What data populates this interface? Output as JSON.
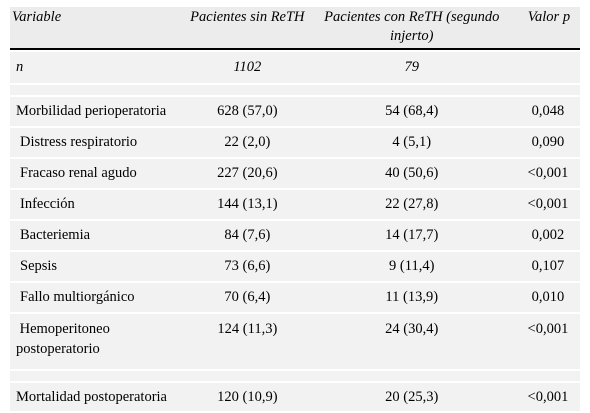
{
  "header": {
    "col1": "Variable",
    "col2": "Pacientes sin ReTH",
    "col3": "Pacientes con ReTH (segundo injerto)",
    "col4": "Valor p"
  },
  "n_row": {
    "label": "n",
    "sin": "1102",
    "con": "79",
    "p": ""
  },
  "rows": [
    {
      "label": "Morbilidad perioperatoria",
      "sin": "628 (57,0)",
      "con": "54 (68,4)",
      "p": "0,048"
    },
    {
      "label": "Distress respiratorio",
      "sin": "22 (2,0)",
      "con": "4 (5,1)",
      "p": "0,090"
    },
    {
      "label": "Fracaso renal agudo",
      "sin": "227 (20,6)",
      "con": "40 (50,6)",
      "p": "<0,001"
    },
    {
      "label": "Infección",
      "sin": "144 (13,1)",
      "con": "22 (27,8)",
      "p": "<0,001"
    },
    {
      "label": "Bacteriemia",
      "sin": "84 (7,6)",
      "con": "14 (17,7)",
      "p": "0,002"
    },
    {
      "label": "Sepsis",
      "sin": "73 (6,6)",
      "con": "9 (11,4)",
      "p": "0,107"
    },
    {
      "label": "Fallo multiorgánico",
      "sin": "70 (6,4)",
      "con": "11 (13,9)",
      "p": "0,010"
    },
    {
      "label": "Hemoperitoneo postoperatorio",
      "sin": "124 (11,3)",
      "con": "24 (30,4)",
      "p": "<0,001"
    },
    {
      "label": "Mortalidad postoperatoria",
      "sin": "120 (10,9)",
      "con": "20 (25,3)",
      "p": "<0,001"
    }
  ]
}
